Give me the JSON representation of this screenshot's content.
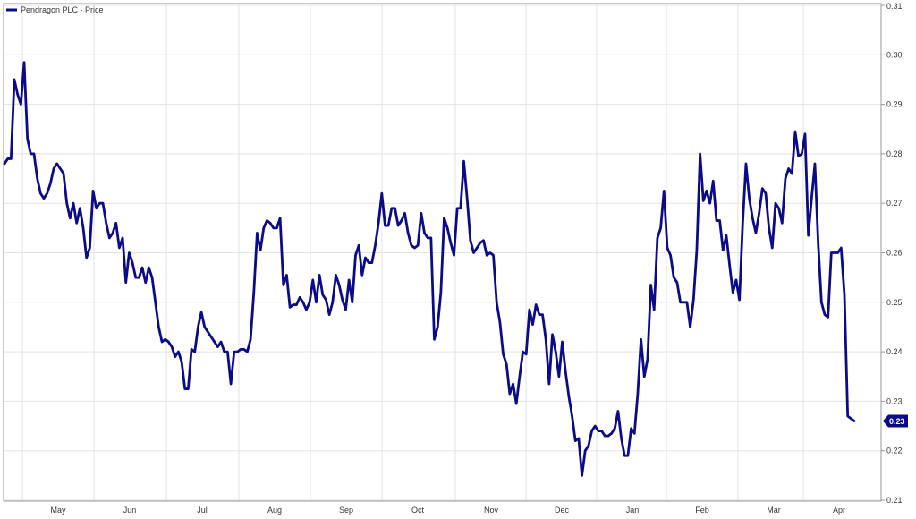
{
  "colors": {
    "series": "#0b0b8a",
    "grid": "#e3e3e3",
    "plot_border": "#9a9a9a",
    "tag_bg": "#0b0b8a",
    "tag_text": "#ffffff"
  },
  "chart_data": {
    "type": "line",
    "title": "",
    "xlabel": "",
    "ylabel": "",
    "ylim": [
      0.21,
      0.31
    ],
    "y_ticks": [
      "0.21",
      "0.22",
      "0.23",
      "0.24",
      "0.25",
      "0.26",
      "0.27",
      "0.28",
      "0.29",
      "0.30",
      "0.31"
    ],
    "x_ticks": [
      "May",
      "Jun",
      "Jul",
      "Aug",
      "Sep",
      "Oct",
      "Nov",
      "Dec",
      "Jan",
      "Feb",
      "Mar",
      "Apr"
    ],
    "grid": true,
    "legend_position": "top-left",
    "last_value_label": "0.23",
    "series": [
      {
        "name": "Pendragon PLC - Price",
        "x_unit": "trading day index (0 = first point, ~20 per month tick)",
        "values": [
          0.278,
          0.279,
          0.279,
          0.295,
          0.292,
          0.29,
          0.2985,
          0.283,
          0.28,
          0.28,
          0.275,
          0.272,
          0.271,
          0.272,
          0.274,
          0.277,
          0.278,
          0.277,
          0.276,
          0.27,
          0.267,
          0.27,
          0.266,
          0.269,
          0.265,
          0.259,
          0.261,
          0.2725,
          0.269,
          0.27,
          0.27,
          0.266,
          0.263,
          0.264,
          0.266,
          0.261,
          0.263,
          0.254,
          0.26,
          0.258,
          0.255,
          0.255,
          0.257,
          0.254,
          0.257,
          0.255,
          0.25,
          0.245,
          0.242,
          0.2425,
          0.242,
          0.241,
          0.239,
          0.24,
          0.238,
          0.2325,
          0.2325,
          0.2405,
          0.24,
          0.245,
          0.248,
          0.245,
          0.244,
          0.243,
          0.242,
          0.241,
          0.242,
          0.24,
          0.24,
          0.2335,
          0.24,
          0.24,
          0.2405,
          0.2405,
          0.24,
          0.2425,
          0.252,
          0.264,
          0.2605,
          0.265,
          0.2665,
          0.266,
          0.265,
          0.265,
          0.267,
          0.2535,
          0.2555,
          0.249,
          0.2495,
          0.2495,
          0.251,
          0.25,
          0.2485,
          0.25,
          0.2545,
          0.25,
          0.2555,
          0.2515,
          0.2505,
          0.2475,
          0.25,
          0.2555,
          0.2535,
          0.2505,
          0.2485,
          0.2545,
          0.25,
          0.2595,
          0.2615,
          0.2555,
          0.259,
          0.258,
          0.258,
          0.2615,
          0.266,
          0.272,
          0.2655,
          0.2655,
          0.269,
          0.269,
          0.2655,
          0.2665,
          0.268,
          0.264,
          0.2615,
          0.261,
          0.2615,
          0.268,
          0.264,
          0.263,
          0.263,
          0.2425,
          0.245,
          0.252,
          0.267,
          0.265,
          0.262,
          0.2595,
          0.269,
          0.269,
          0.2785,
          0.271,
          0.2625,
          0.26,
          0.261,
          0.262,
          0.2625,
          0.2595,
          0.26,
          0.2595,
          0.25,
          0.246,
          0.2395,
          0.2375,
          0.2315,
          0.2335,
          0.2295,
          0.235,
          0.24,
          0.2395,
          0.2485,
          0.2455,
          0.2495,
          0.2475,
          0.2475,
          0.2425,
          0.2335,
          0.2435,
          0.24,
          0.235,
          0.242,
          0.236,
          0.231,
          0.227,
          0.222,
          0.2225,
          0.215,
          0.22,
          0.221,
          0.224,
          0.225,
          0.224,
          0.224,
          0.223,
          0.223,
          0.2235,
          0.2245,
          0.228,
          0.2225,
          0.219,
          0.219,
          0.2245,
          0.2235,
          0.2315,
          0.2425,
          0.235,
          0.2385,
          0.2535,
          0.2485,
          0.263,
          0.265,
          0.2725,
          0.261,
          0.2595,
          0.255,
          0.254,
          0.25,
          0.25,
          0.25,
          0.245,
          0.2505,
          0.2605,
          0.28,
          0.2705,
          0.2725,
          0.27,
          0.2745,
          0.2665,
          0.2665,
          0.2605,
          0.2635,
          0.2575,
          0.252,
          0.2545,
          0.2505,
          0.266,
          0.278,
          0.271,
          0.267,
          0.264,
          0.268,
          0.273,
          0.272,
          0.265,
          0.261,
          0.27,
          0.269,
          0.266,
          0.275,
          0.277,
          0.276,
          0.2845,
          0.2795,
          0.28,
          0.284,
          0.2635,
          0.271,
          0.278,
          0.262,
          0.25,
          0.2475,
          0.247,
          0.26,
          0.26,
          0.26,
          0.261,
          0.2515,
          0.227,
          0.2265,
          0.226
        ]
      }
    ]
  }
}
